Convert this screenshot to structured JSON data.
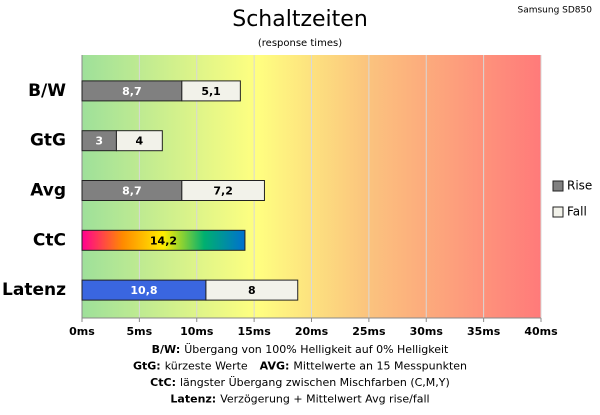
{
  "chart_data": {
    "type": "stacked-barh",
    "title": "Schaltzeiten",
    "subtitle": "(response times)",
    "corner_text": "Samsung SD850",
    "categories": [
      "B/W",
      "GtG",
      "Avg",
      "CtC",
      "Latenz"
    ],
    "series": [
      {
        "name": "Rise",
        "color": "#808080",
        "label_color": "#ffffff",
        "values": [
          8.7,
          3,
          8.7,
          14.2,
          10.8
        ],
        "value_labels": [
          "8,7",
          "3",
          "8,7",
          "14,2",
          "10,8"
        ],
        "point_colors": [
          null,
          null,
          null,
          [
            "#ff0090",
            "#ff8a00",
            "#ffee00",
            "#00b070",
            "#0070d0"
          ],
          "#3a66e0"
        ]
      },
      {
        "name": "Fall",
        "color": "#f2f2ea",
        "label_color": "#000000",
        "values": [
          5.1,
          4,
          7.2,
          null,
          8
        ],
        "value_labels": [
          "5,1",
          "4",
          "7,2",
          null,
          "8"
        ]
      }
    ],
    "xlim": [
      0,
      40
    ],
    "xticks": [
      {
        "value": 0,
        "label": "0ms"
      },
      {
        "value": 5,
        "label": "5ms"
      },
      {
        "value": 10,
        "label": "10ms"
      },
      {
        "value": 15,
        "label": "15ms"
      },
      {
        "value": 20,
        "label": "20ms"
      },
      {
        "value": 25,
        "label": "25ms"
      },
      {
        "value": 30,
        "label": "30ms"
      },
      {
        "value": 35,
        "label": "35ms"
      },
      {
        "value": 40,
        "label": "40ms"
      }
    ],
    "grid": true,
    "legend": "right",
    "notes": [
      [
        "B/W:",
        "Übergang von 100% Helligkeit auf 0% Helligkeit"
      ],
      [
        "GtG:",
        "kürzeste Werte",
        "AVG:",
        "Mittelwerte  an 15 Messpunkten"
      ],
      [
        "CtC:",
        "längster Übergang  zwischen Mischfarben (C,M,Y)"
      ],
      [
        "Latenz:",
        "Verzögerung  + Mittelwert Avg rise/fall"
      ]
    ]
  }
}
